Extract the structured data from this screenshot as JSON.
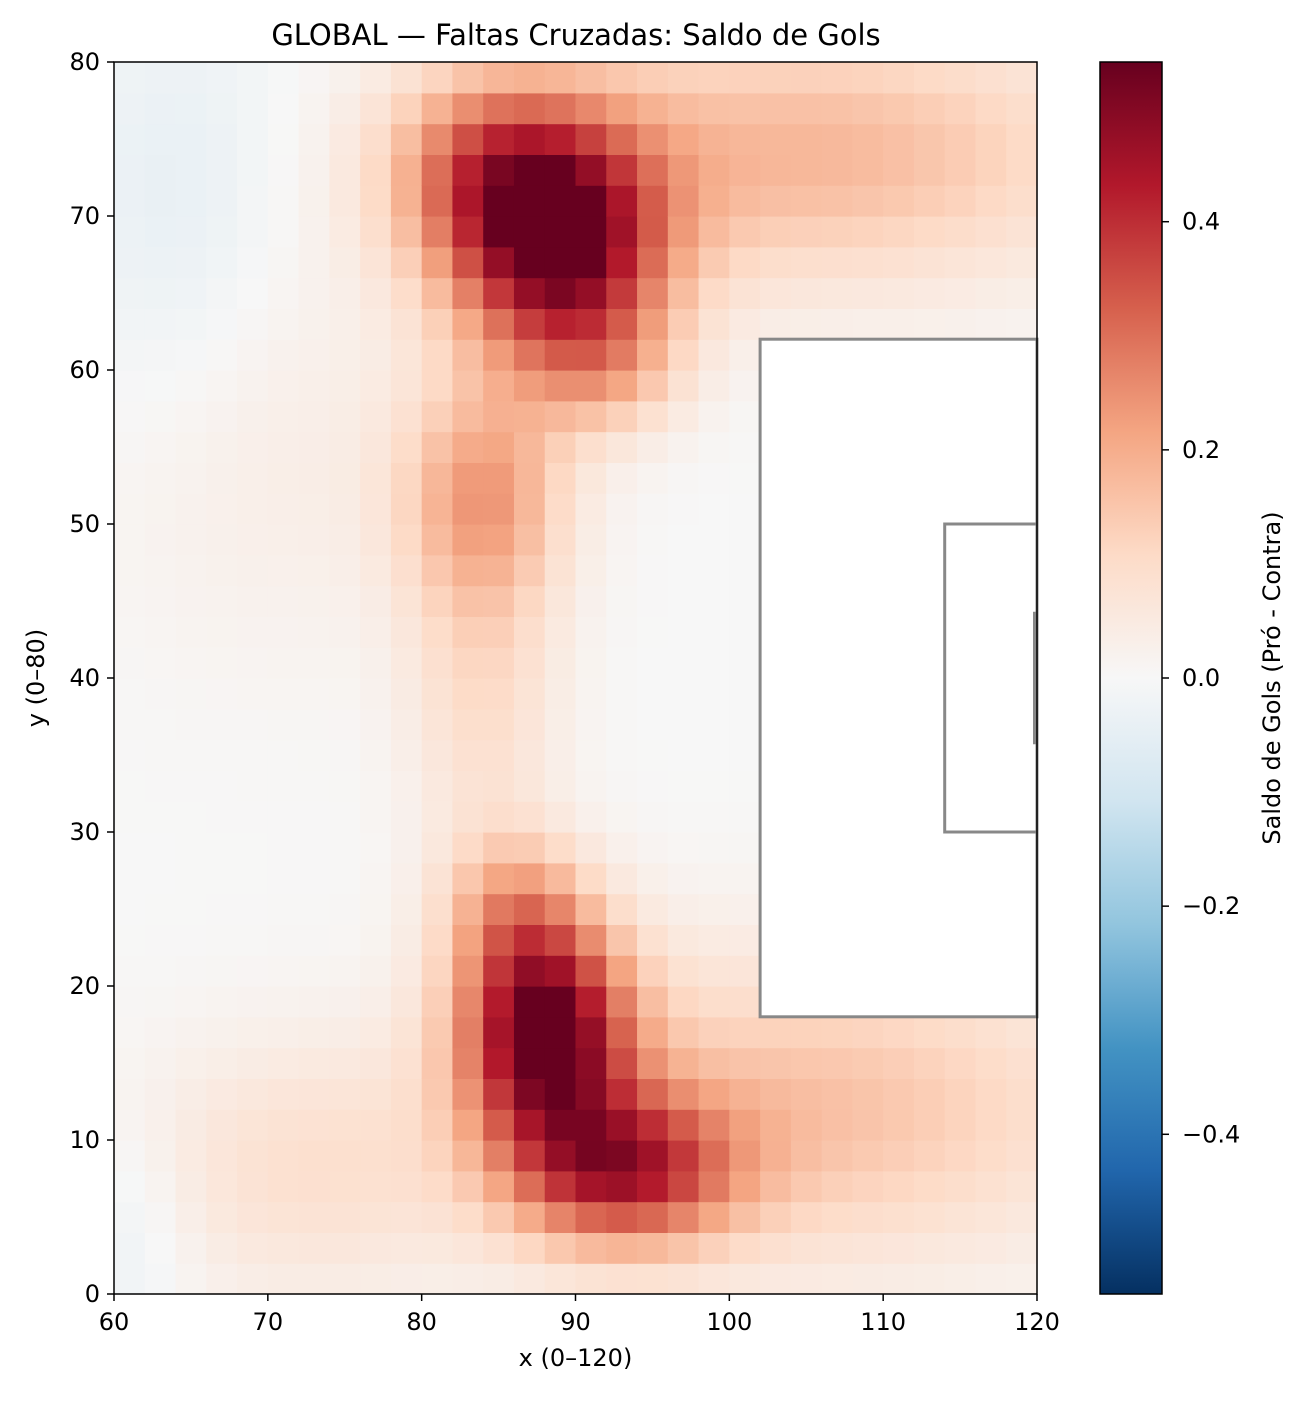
{
  "chart_data": {
    "type": "heatmap",
    "title": "GLOBAL — Faltas Cruzadas: Saldo de Gols",
    "xlabel": "x (0–120)",
    "ylabel": "y (0–80)",
    "xlim": [
      60,
      120
    ],
    "ylim": [
      0,
      80
    ],
    "x_ticks": [
      60,
      70,
      80,
      90,
      100,
      110,
      120
    ],
    "y_ticks": [
      0,
      10,
      20,
      30,
      40,
      50,
      60,
      70,
      80
    ],
    "grid_size": [
      30,
      40
    ],
    "colormap": "RdBu_r",
    "colorbar": {
      "label": "Saldo de Gols (Pró - Contra)",
      "range": [
        -0.54,
        0.54
      ],
      "ticks": [
        -0.4,
        -0.2,
        0.0,
        0.2,
        0.4
      ],
      "tick_labels": [
        "−0.4",
        "−0.2",
        "0.0",
        "0.2",
        "0.4"
      ]
    },
    "hotspots": [
      {
        "x": 89,
        "y": 68,
        "value": 0.5,
        "sx": 4.8,
        "sy": 5.5
      },
      {
        "x": 84,
        "y": 73,
        "value": 0.22,
        "sx": 4.5,
        "sy": 4.5
      },
      {
        "x": 92,
        "y": 60,
        "value": 0.12,
        "sx": 3.5,
        "sy": 3.0
      },
      {
        "x": 84,
        "y": 52,
        "value": 0.2,
        "sx": 3.8,
        "sy": 5.0
      },
      {
        "x": 84,
        "y": 40,
        "value": 0.1,
        "sx": 3.5,
        "sy": 8.0
      },
      {
        "x": 88,
        "y": 17,
        "value": 0.52,
        "sx": 3.8,
        "sy": 5.0
      },
      {
        "x": 93,
        "y": 8,
        "value": 0.36,
        "sx": 5.0,
        "sy": 3.5
      },
      {
        "x": 86,
        "y": 25,
        "value": 0.16,
        "sx": 3.2,
        "sy": 3.5
      },
      {
        "x": 105,
        "y": 74,
        "value": 0.18,
        "sx": 14.0,
        "sy": 6.0
      },
      {
        "x": 105,
        "y": 12,
        "value": 0.16,
        "sx": 14.0,
        "sy": 7.0
      },
      {
        "x": 72,
        "y": 8,
        "value": 0.08,
        "sx": 8.0,
        "sy": 6.0
      },
      {
        "x": 70,
        "y": 55,
        "value": 0.04,
        "sx": 8.0,
        "sy": 10.0
      },
      {
        "x": 64,
        "y": 70,
        "value": -0.05,
        "sx": 5.0,
        "sy": 10.0
      },
      {
        "x": 61,
        "y": 4,
        "value": -0.04,
        "sx": 3.0,
        "sy": 5.0
      }
    ],
    "overlays": {
      "penalty_area": {
        "x0": 102,
        "x1": 120,
        "y0": 18,
        "y1": 62
      },
      "six_yard_box": {
        "x0": 114,
        "x1": 120,
        "y0": 30,
        "y1": 50
      },
      "goal": {
        "x": 120,
        "y0": 35.7,
        "y1": 44.3
      },
      "line_color": "#888888"
    }
  }
}
